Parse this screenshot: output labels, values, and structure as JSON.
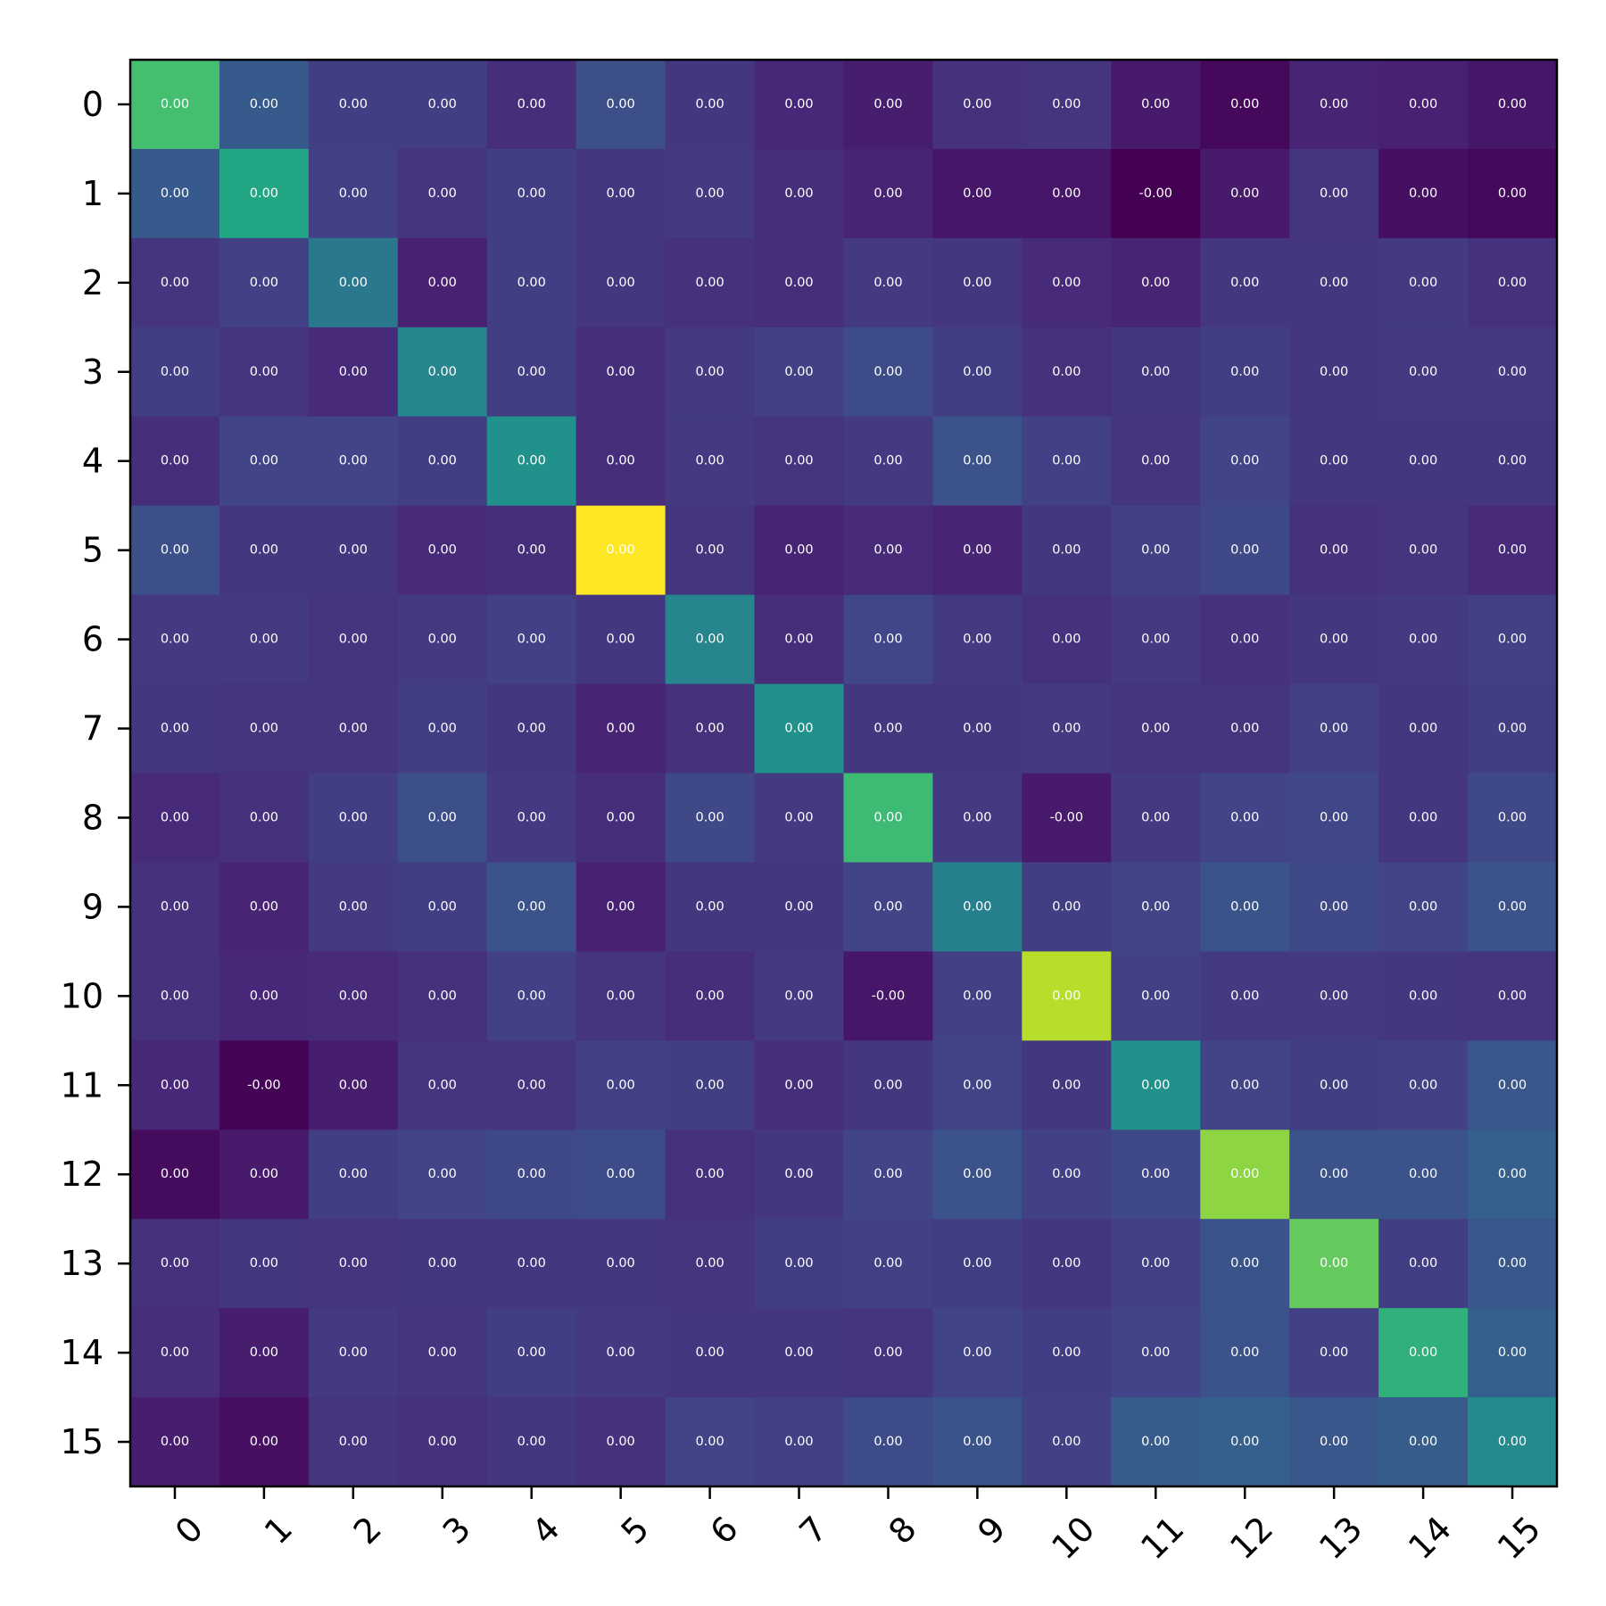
{
  "chart_data": {
    "type": "heatmap",
    "title": "",
    "xlabel": "",
    "ylabel": "",
    "x_ticks": [
      "0",
      "1",
      "2",
      "3",
      "4",
      "5",
      "6",
      "7",
      "8",
      "9",
      "10",
      "11",
      "12",
      "13",
      "14",
      "15"
    ],
    "y_ticks": [
      "0",
      "1",
      "2",
      "3",
      "4",
      "5",
      "6",
      "7",
      "8",
      "9",
      "10",
      "11",
      "12",
      "13",
      "14",
      "15"
    ],
    "colormap": "viridis",
    "color_range": [
      0,
      1
    ],
    "grid": false,
    "intensity": [
      [
        0.7,
        0.28,
        0.18,
        0.18,
        0.13,
        0.24,
        0.16,
        0.11,
        0.08,
        0.14,
        0.15,
        0.07,
        0.02,
        0.1,
        0.09,
        0.06
      ],
      [
        0.28,
        0.59,
        0.19,
        0.15,
        0.18,
        0.16,
        0.17,
        0.13,
        0.1,
        0.06,
        0.06,
        0.0,
        0.07,
        0.15,
        0.04,
        0.02
      ],
      [
        0.15,
        0.19,
        0.4,
        0.09,
        0.18,
        0.16,
        0.14,
        0.13,
        0.17,
        0.16,
        0.12,
        0.1,
        0.16,
        0.16,
        0.17,
        0.14
      ],
      [
        0.18,
        0.15,
        0.12,
        0.45,
        0.18,
        0.13,
        0.17,
        0.19,
        0.23,
        0.18,
        0.14,
        0.16,
        0.18,
        0.16,
        0.17,
        0.17
      ],
      [
        0.13,
        0.2,
        0.2,
        0.18,
        0.5,
        0.13,
        0.17,
        0.15,
        0.17,
        0.25,
        0.19,
        0.15,
        0.2,
        0.16,
        0.16,
        0.16
      ],
      [
        0.24,
        0.16,
        0.16,
        0.12,
        0.13,
        1.0,
        0.15,
        0.1,
        0.12,
        0.1,
        0.16,
        0.19,
        0.22,
        0.14,
        0.15,
        0.12
      ],
      [
        0.17,
        0.17,
        0.15,
        0.17,
        0.19,
        0.16,
        0.45,
        0.13,
        0.21,
        0.17,
        0.14,
        0.17,
        0.14,
        0.16,
        0.17,
        0.19
      ],
      [
        0.16,
        0.15,
        0.15,
        0.18,
        0.16,
        0.1,
        0.14,
        0.5,
        0.16,
        0.16,
        0.17,
        0.15,
        0.15,
        0.19,
        0.16,
        0.18
      ],
      [
        0.12,
        0.14,
        0.18,
        0.24,
        0.17,
        0.13,
        0.22,
        0.17,
        0.68,
        0.17,
        0.07,
        0.17,
        0.2,
        0.21,
        0.16,
        0.22
      ],
      [
        0.14,
        0.1,
        0.17,
        0.18,
        0.25,
        0.09,
        0.16,
        0.16,
        0.2,
        0.43,
        0.18,
        0.2,
        0.26,
        0.22,
        0.2,
        0.25
      ],
      [
        0.14,
        0.11,
        0.12,
        0.14,
        0.19,
        0.15,
        0.13,
        0.17,
        0.06,
        0.19,
        0.89,
        0.19,
        0.17,
        0.17,
        0.16,
        0.15
      ],
      [
        0.11,
        0.01,
        0.08,
        0.15,
        0.15,
        0.19,
        0.18,
        0.13,
        0.16,
        0.2,
        0.16,
        0.5,
        0.2,
        0.18,
        0.19,
        0.27
      ],
      [
        0.03,
        0.07,
        0.18,
        0.2,
        0.22,
        0.23,
        0.14,
        0.16,
        0.2,
        0.25,
        0.19,
        0.22,
        0.83,
        0.25,
        0.26,
        0.3
      ],
      [
        0.14,
        0.16,
        0.15,
        0.16,
        0.16,
        0.16,
        0.15,
        0.18,
        0.19,
        0.18,
        0.16,
        0.19,
        0.26,
        0.76,
        0.18,
        0.27
      ],
      [
        0.13,
        0.08,
        0.17,
        0.15,
        0.18,
        0.17,
        0.16,
        0.16,
        0.15,
        0.2,
        0.18,
        0.2,
        0.25,
        0.19,
        0.64,
        0.3
      ],
      [
        0.08,
        0.04,
        0.15,
        0.14,
        0.16,
        0.14,
        0.2,
        0.19,
        0.23,
        0.26,
        0.19,
        0.29,
        0.3,
        0.27,
        0.29,
        0.47
      ]
    ],
    "labels": [
      [
        "0.00",
        "0.00",
        "0.00",
        "0.00",
        "0.00",
        "0.00",
        "0.00",
        "0.00",
        "0.00",
        "0.00",
        "0.00",
        "0.00",
        "0.00",
        "0.00",
        "0.00",
        "0.00"
      ],
      [
        "0.00",
        "0.00",
        "0.00",
        "0.00",
        "0.00",
        "0.00",
        "0.00",
        "0.00",
        "0.00",
        "0.00",
        "0.00",
        "-0.00",
        "0.00",
        "0.00",
        "0.00",
        "0.00"
      ],
      [
        "0.00",
        "0.00",
        "0.00",
        "0.00",
        "0.00",
        "0.00",
        "0.00",
        "0.00",
        "0.00",
        "0.00",
        "0.00",
        "0.00",
        "0.00",
        "0.00",
        "0.00",
        "0.00"
      ],
      [
        "0.00",
        "0.00",
        "0.00",
        "0.00",
        "0.00",
        "0.00",
        "0.00",
        "0.00",
        "0.00",
        "0.00",
        "0.00",
        "0.00",
        "0.00",
        "0.00",
        "0.00",
        "0.00"
      ],
      [
        "0.00",
        "0.00",
        "0.00",
        "0.00",
        "0.00",
        "0.00",
        "0.00",
        "0.00",
        "0.00",
        "0.00",
        "0.00",
        "0.00",
        "0.00",
        "0.00",
        "0.00",
        "0.00"
      ],
      [
        "0.00",
        "0.00",
        "0.00",
        "0.00",
        "0.00",
        "0.00",
        "0.00",
        "0.00",
        "0.00",
        "0.00",
        "0.00",
        "0.00",
        "0.00",
        "0.00",
        "0.00",
        "0.00"
      ],
      [
        "0.00",
        "0.00",
        "0.00",
        "0.00",
        "0.00",
        "0.00",
        "0.00",
        "0.00",
        "0.00",
        "0.00",
        "0.00",
        "0.00",
        "0.00",
        "0.00",
        "0.00",
        "0.00"
      ],
      [
        "0.00",
        "0.00",
        "0.00",
        "0.00",
        "0.00",
        "0.00",
        "0.00",
        "0.00",
        "0.00",
        "0.00",
        "0.00",
        "0.00",
        "0.00",
        "0.00",
        "0.00",
        "0.00"
      ],
      [
        "0.00",
        "0.00",
        "0.00",
        "0.00",
        "0.00",
        "0.00",
        "0.00",
        "0.00",
        "0.00",
        "0.00",
        "-0.00",
        "0.00",
        "0.00",
        "0.00",
        "0.00",
        "0.00"
      ],
      [
        "0.00",
        "0.00",
        "0.00",
        "0.00",
        "0.00",
        "0.00",
        "0.00",
        "0.00",
        "0.00",
        "0.00",
        "0.00",
        "0.00",
        "0.00",
        "0.00",
        "0.00",
        "0.00"
      ],
      [
        "0.00",
        "0.00",
        "0.00",
        "0.00",
        "0.00",
        "0.00",
        "0.00",
        "0.00",
        "-0.00",
        "0.00",
        "0.00",
        "0.00",
        "0.00",
        "0.00",
        "0.00",
        "0.00"
      ],
      [
        "0.00",
        "-0.00",
        "0.00",
        "0.00",
        "0.00",
        "0.00",
        "0.00",
        "0.00",
        "0.00",
        "0.00",
        "0.00",
        "0.00",
        "0.00",
        "0.00",
        "0.00",
        "0.00"
      ],
      [
        "0.00",
        "0.00",
        "0.00",
        "0.00",
        "0.00",
        "0.00",
        "0.00",
        "0.00",
        "0.00",
        "0.00",
        "0.00",
        "0.00",
        "0.00",
        "0.00",
        "0.00",
        "0.00"
      ],
      [
        "0.00",
        "0.00",
        "0.00",
        "0.00",
        "0.00",
        "0.00",
        "0.00",
        "0.00",
        "0.00",
        "0.00",
        "0.00",
        "0.00",
        "0.00",
        "0.00",
        "0.00",
        "0.00"
      ],
      [
        "0.00",
        "0.00",
        "0.00",
        "0.00",
        "0.00",
        "0.00",
        "0.00",
        "0.00",
        "0.00",
        "0.00",
        "0.00",
        "0.00",
        "0.00",
        "0.00",
        "0.00",
        "0.00"
      ],
      [
        "0.00",
        "0.00",
        "0.00",
        "0.00",
        "0.00",
        "0.00",
        "0.00",
        "0.00",
        "0.00",
        "0.00",
        "0.00",
        "0.00",
        "0.00",
        "0.00",
        "0.00",
        "0.00"
      ]
    ]
  }
}
